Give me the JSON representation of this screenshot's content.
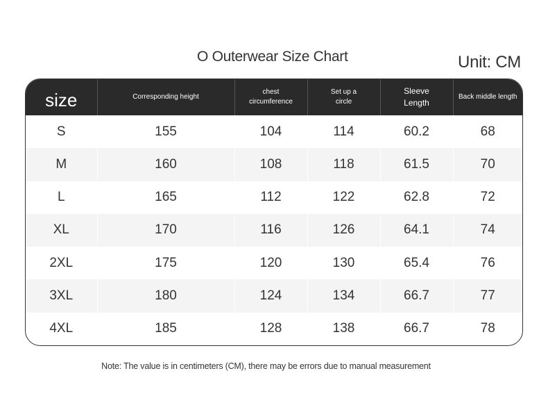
{
  "title": "O Outerwear Size Chart",
  "unit": "Unit: CM",
  "headers": {
    "size": "size",
    "height": "Corresponding height",
    "chest_1": "chest",
    "chest_2": "circumference",
    "setup_1": "Set up a",
    "setup_2": "circle",
    "sleeve_1": "Sleeve",
    "sleeve_2": "Length",
    "back": "Back middle length"
  },
  "rows": [
    {
      "size": "S",
      "height": "155",
      "chest": "104",
      "setup": "114",
      "sleeve": "60.2",
      "back": "68"
    },
    {
      "size": "M",
      "height": "160",
      "chest": "108",
      "setup": "118",
      "sleeve": "61.5",
      "back": "70"
    },
    {
      "size": "L",
      "height": "165",
      "chest": "112",
      "setup": "122",
      "sleeve": "62.8",
      "back": "72"
    },
    {
      "size": "XL",
      "height": "170",
      "chest": "116",
      "setup": "126",
      "sleeve": "64.1",
      "back": "74"
    },
    {
      "size": "2XL",
      "height": "175",
      "chest": "120",
      "setup": "130",
      "sleeve": "65.4",
      "back": "76"
    },
    {
      "size": "3XL",
      "height": "180",
      "chest": "124",
      "setup": "134",
      "sleeve": "66.7",
      "back": "77"
    },
    {
      "size": "4XL",
      "height": "185",
      "chest": "128",
      "setup": "138",
      "sleeve": "66.7",
      "back": "78"
    }
  ],
  "note": "Note: The value is in centimeters (CM), there may be errors due to manual measurement"
}
